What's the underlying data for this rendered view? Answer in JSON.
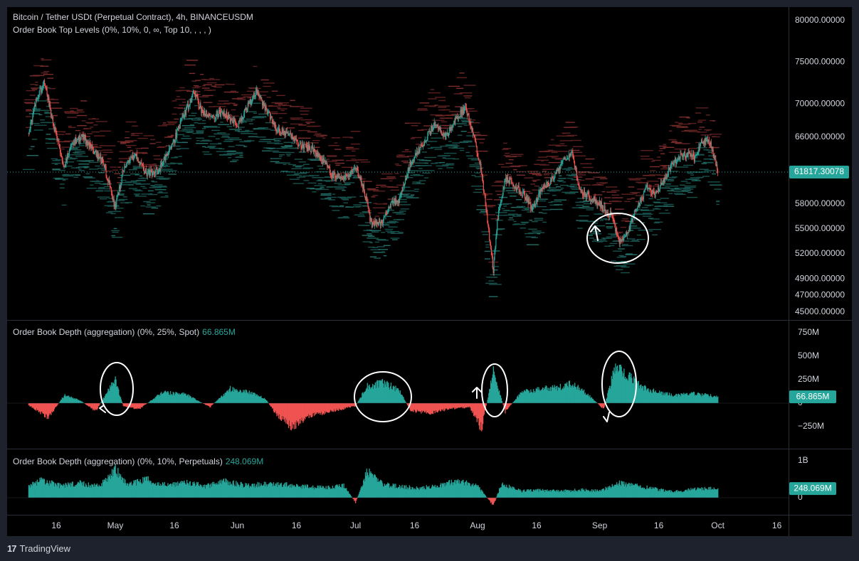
{
  "header": {
    "symbol": "Bitcoin / Tether USDt (Perpetual Contract), 4h, BINANCEUSDM",
    "indicator": "Order Book Top Levels (0%, 10%, 0, ∞, Top 10, , , , )"
  },
  "panes": {
    "spot_label": "Order Book Depth (aggregation) (0%, 25%, Spot)",
    "spot_value": "66.865M",
    "perp_label": "Order Book Depth (aggregation) (0%, 10%, Perpetuals)",
    "perp_value": "248.069M"
  },
  "branding": {
    "logo": "17",
    "name": "TradingView"
  },
  "colors": {
    "background": "#000000",
    "frame": "#1e222d",
    "up": "#26a69a",
    "down": "#ef5350",
    "text": "#d1d4dc"
  },
  "chart_data": [
    {
      "type": "candlestick",
      "title": "Bitcoin / Tether USDt (Perpetual Contract), 4h, BINANCEUSDM",
      "x_ticks": [
        "16",
        "May",
        "16",
        "Jun",
        "16",
        "Jul",
        "16",
        "Aug",
        "16",
        "Sep",
        "16",
        "Oct",
        "16"
      ],
      "y_ticks": [
        "80000.00000",
        "75000.00000",
        "70000.00000",
        "66000.00000",
        "58000.00000",
        "55000.00000",
        "52000.00000",
        "49000.00000",
        "47000.00000",
        "45000.00000"
      ],
      "last_price": "61817.30078",
      "close_path": [
        [
          "Apr 09",
          66500
        ],
        [
          "Apr 11",
          70500
        ],
        [
          "Apr 13",
          72800
        ],
        [
          "Apr 15",
          68000
        ],
        [
          "Apr 18",
          62500
        ],
        [
          "Apr 20",
          65500
        ],
        [
          "Apr 23",
          66000
        ],
        [
          "Apr 26",
          64000
        ],
        [
          "Apr 28",
          63000
        ],
        [
          "May 01",
          57500
        ],
        [
          "May 03",
          62000
        ],
        [
          "May 06",
          64000
        ],
        [
          "May 09",
          61500
        ],
        [
          "May 12",
          62000
        ],
        [
          "May 15",
          64500
        ],
        [
          "May 17",
          67000
        ],
        [
          "May 21",
          71500
        ],
        [
          "May 23",
          69000
        ],
        [
          "May 26",
          68500
        ],
        [
          "May 28",
          69000
        ],
        [
          "Jun 01",
          67500
        ],
        [
          "Jun 04",
          70000
        ],
        [
          "Jun 06",
          71500
        ],
        [
          "Jun 08",
          69500
        ],
        [
          "Jun 11",
          67000
        ],
        [
          "Jun 14",
          66500
        ],
        [
          "Jun 17",
          65000
        ],
        [
          "Jun 20",
          64500
        ],
        [
          "Jun 23",
          63000
        ],
        [
          "Jun 25",
          61500
        ],
        [
          "Jun 28",
          61000
        ],
        [
          "Jul 01",
          62500
        ],
        [
          "Jul 03",
          60000
        ],
        [
          "Jul 05",
          55500
        ],
        [
          "Jul 08",
          56000
        ],
        [
          "Jul 10",
          58000
        ],
        [
          "Jul 12",
          58500
        ],
        [
          "Jul 15",
          63000
        ],
        [
          "Jul 18",
          65000
        ],
        [
          "Jul 21",
          67500
        ],
        [
          "Jul 24",
          66000
        ],
        [
          "Jul 27",
          68500
        ],
        [
          "Jul 29",
          69500
        ],
        [
          "Jul 31",
          66000
        ],
        [
          "Aug 02",
          62000
        ],
        [
          "Aug 05",
          50000
        ],
        [
          "Aug 06",
          56000
        ],
        [
          "Aug 08",
          61000
        ],
        [
          "Aug 10",
          60500
        ],
        [
          "Aug 13",
          59000
        ],
        [
          "Aug 15",
          57500
        ],
        [
          "Aug 17",
          59500
        ],
        [
          "Aug 20",
          61000
        ],
        [
          "Aug 23",
          63500
        ],
        [
          "Aug 25",
          64000
        ],
        [
          "Aug 27",
          59500
        ],
        [
          "Aug 29",
          59000
        ],
        [
          "Sep 01",
          58000
        ],
        [
          "Sep 04",
          56500
        ],
        [
          "Sep 06",
          53500
        ],
        [
          "Sep 08",
          54500
        ],
        [
          "Sep 10",
          57000
        ],
        [
          "Sep 13",
          60000
        ],
        [
          "Sep 15",
          59000
        ],
        [
          "Sep 17",
          60500
        ],
        [
          "Sep 19",
          62500
        ],
        [
          "Sep 21",
          63500
        ],
        [
          "Sep 23",
          64000
        ],
        [
          "Sep 25",
          63500
        ],
        [
          "Sep 27",
          65500
        ],
        [
          "Sep 29",
          65500
        ],
        [
          "Oct 01",
          61800
        ]
      ]
    },
    {
      "type": "area",
      "title": "Order Book Depth (aggregation) (0%, 25%, Spot)",
      "y_ticks": [
        "750M",
        "500M",
        "250M",
        "0",
        "−250M"
      ],
      "last_value": "66.865M",
      "series_path": [
        [
          "Apr 09",
          -20
        ],
        [
          "Apr 14",
          -150
        ],
        [
          "Apr 18",
          80
        ],
        [
          "Apr 22",
          30
        ],
        [
          "Apr 26",
          -80
        ],
        [
          "Apr 29",
          120
        ],
        [
          "May 01",
          240
        ],
        [
          "May 03",
          -30
        ],
        [
          "May 07",
          -60
        ],
        [
          "May 13",
          110
        ],
        [
          "May 19",
          90
        ],
        [
          "May 25",
          -40
        ],
        [
          "May 30",
          150
        ],
        [
          "Jun 04",
          120
        ],
        [
          "Jun 08",
          50
        ],
        [
          "Jun 11",
          -120
        ],
        [
          "Jun 15",
          -250
        ],
        [
          "Jun 19",
          -140
        ],
        [
          "Jun 24",
          -90
        ],
        [
          "Jul 01",
          -30
        ],
        [
          "Jul 04",
          180
        ],
        [
          "Jul 08",
          210
        ],
        [
          "Jul 12",
          140
        ],
        [
          "Jul 15",
          -80
        ],
        [
          "Jul 20",
          -100
        ],
        [
          "Jul 25",
          -60
        ],
        [
          "Jul 30",
          -40
        ],
        [
          "Aug 02",
          -260
        ],
        [
          "Aug 05",
          330
        ],
        [
          "Aug 08",
          -90
        ],
        [
          "Aug 12",
          110
        ],
        [
          "Aug 17",
          150
        ],
        [
          "Aug 21",
          160
        ],
        [
          "Aug 25",
          200
        ],
        [
          "Aug 29",
          90
        ],
        [
          "Sep 02",
          -60
        ],
        [
          "Sep 05",
          380
        ],
        [
          "Sep 08",
          300
        ],
        [
          "Sep 12",
          160
        ],
        [
          "Sep 16",
          110
        ],
        [
          "Sep 20",
          80
        ],
        [
          "Sep 25",
          100
        ],
        [
          "Oct 01",
          67
        ]
      ]
    },
    {
      "type": "area",
      "title": "Order Book Depth (aggregation) (0%, 10%, Perpetuals)",
      "y_ticks": [
        "1B",
        "0"
      ],
      "last_value": "248.069M",
      "series_path": [
        [
          "Apr 09",
          300
        ],
        [
          "Apr 12",
          450
        ],
        [
          "Apr 17",
          320
        ],
        [
          "Apr 22",
          380
        ],
        [
          "Apr 27",
          300
        ],
        [
          "May 01",
          750
        ],
        [
          "May 04",
          330
        ],
        [
          "May 09",
          480
        ],
        [
          "May 14",
          330
        ],
        [
          "May 19",
          400
        ],
        [
          "May 24",
          300
        ],
        [
          "May 29",
          430
        ],
        [
          "Jun 03",
          320
        ],
        [
          "Jun 08",
          360
        ],
        [
          "Jun 13",
          340
        ],
        [
          "Jun 18",
          300
        ],
        [
          "Jun 23",
          260
        ],
        [
          "Jun 28",
          310
        ],
        [
          "Jul 01",
          -120
        ],
        [
          "Jul 04",
          700
        ],
        [
          "Jul 08",
          350
        ],
        [
          "Jul 12",
          300
        ],
        [
          "Jul 17",
          250
        ],
        [
          "Jul 22",
          320
        ],
        [
          "Jul 27",
          450
        ],
        [
          "Aug 01",
          300
        ],
        [
          "Aug 05",
          -200
        ],
        [
          "Aug 07",
          350
        ],
        [
          "Aug 12",
          180
        ],
        [
          "Aug 17",
          200
        ],
        [
          "Aug 22",
          170
        ],
        [
          "Aug 27",
          210
        ],
        [
          "Sep 01",
          180
        ],
        [
          "Sep 06",
          380
        ],
        [
          "Sep 10",
          320
        ],
        [
          "Sep 15",
          230
        ],
        [
          "Sep 20",
          160
        ],
        [
          "Sep 25",
          230
        ],
        [
          "Oct 01",
          248
        ]
      ]
    }
  ]
}
